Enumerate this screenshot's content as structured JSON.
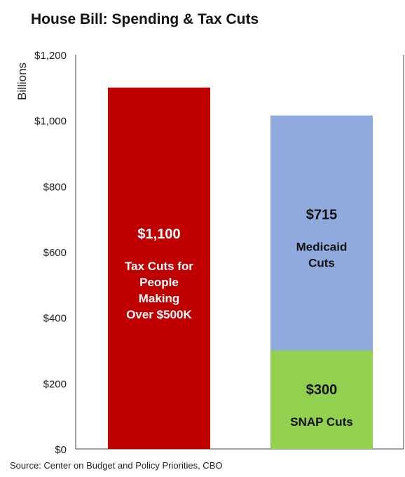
{
  "chart_data": {
    "type": "bar",
    "title": "House Bill: Spending & Tax Cuts",
    "ylabel": "Billions",
    "ylim": [
      0,
      1200
    ],
    "yticks": [
      0,
      200,
      400,
      600,
      800,
      1000,
      1200
    ],
    "ytick_labels": [
      "$0",
      "$200",
      "$400",
      "$600",
      "$800",
      "$1,000",
      "$1,200"
    ],
    "grid": false,
    "stacked": true,
    "bars": [
      {
        "segments": [
          {
            "value": 1100,
            "value_label": "$1,100",
            "label_lines": [
              "Tax Cuts for",
              "People",
              "Making",
              "Over $500K"
            ],
            "color": "#c00000",
            "text_color": "#ffffff"
          }
        ]
      },
      {
        "segments": [
          {
            "value": 300,
            "value_label": "$300",
            "label_lines": [
              "SNAP Cuts"
            ],
            "color": "#92d050",
            "text_color": "#111111"
          },
          {
            "value": 715,
            "value_label": "$715",
            "label_lines": [
              "Medicaid",
              "Cuts"
            ],
            "color": "#8faadc",
            "text_color": "#111111"
          }
        ]
      }
    ]
  },
  "source": "Source: Center on Budget and Policy Priorities, CBO"
}
